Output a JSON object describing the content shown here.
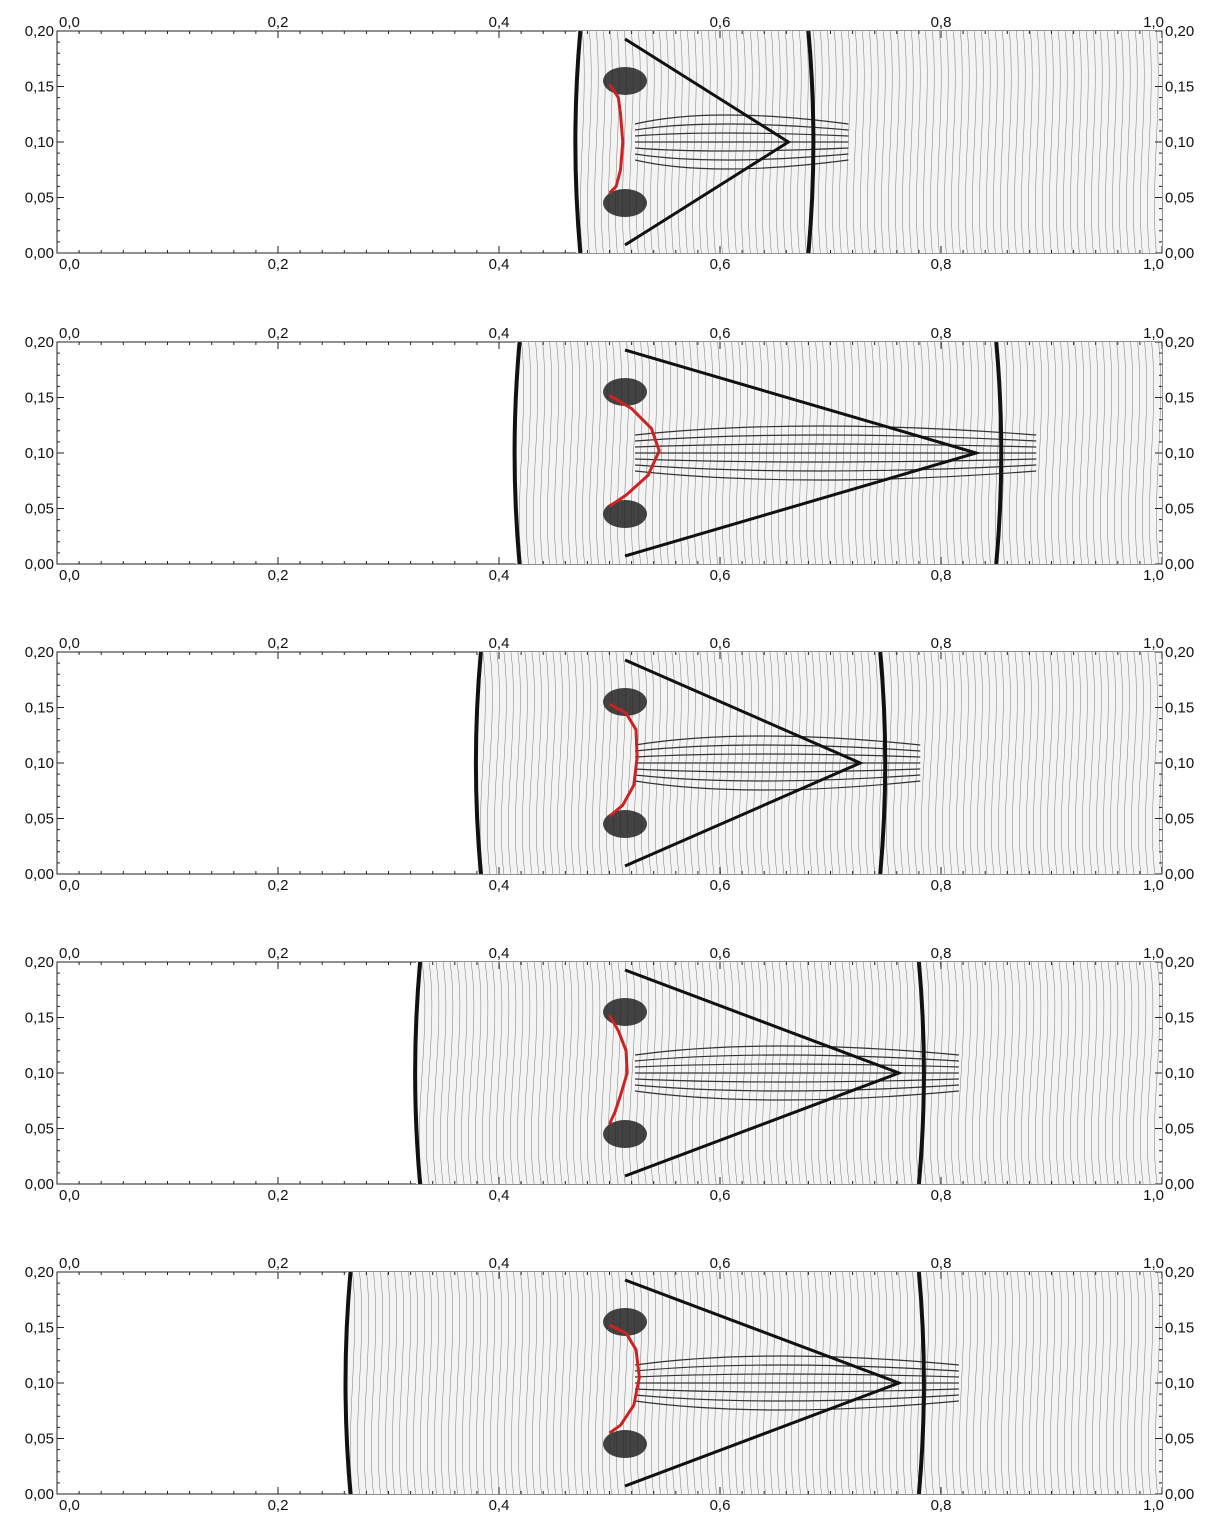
{
  "chart_data": [
    {
      "type": "contour",
      "title": "",
      "xlabel": "",
      "ylabel": "",
      "xlim": [
        0,
        1
      ],
      "ylim": [
        0,
        0.2
      ],
      "x_ticks": [
        0,
        0.2,
        0.4,
        0.6,
        0.8,
        1.0
      ],
      "x_tick_labels": [
        "0,0",
        "0,2",
        "0,4",
        "0,6",
        "0,8",
        "1,0"
      ],
      "y_ticks": [
        0,
        0.05,
        0.1,
        0.15,
        0.2
      ],
      "y_tick_labels": [
        "0,00",
        "0,05",
        "0,10",
        "0,15",
        "0,20"
      ],
      "grid": false,
      "interface_color": "#cc2222",
      "interface_points": [
        [
          0.5,
          0.152
        ],
        [
          0.508,
          0.14
        ],
        [
          0.51,
          0.125
        ],
        [
          0.512,
          0.1
        ],
        [
          0.51,
          0.075
        ],
        [
          0.506,
          0.06
        ],
        [
          0.5,
          0.054
        ]
      ],
      "left_front_x": 0.47,
      "right_front_x": 0.68
    },
    {
      "type": "contour",
      "title": "",
      "xlabel": "",
      "ylabel": "",
      "xlim": [
        0,
        1
      ],
      "ylim": [
        0,
        0.2
      ],
      "x_ticks": [
        0,
        0.2,
        0.4,
        0.6,
        0.8,
        1.0
      ],
      "x_tick_labels": [
        "0,0",
        "0,2",
        "0,4",
        "0,6",
        "0,8",
        "1,0"
      ],
      "y_ticks": [
        0,
        0.05,
        0.1,
        0.15,
        0.2
      ],
      "y_tick_labels": [
        "0,00",
        "0,05",
        "0,10",
        "0,15",
        "0,20"
      ],
      "grid": false,
      "interface_color": "#cc2222",
      "interface_points": [
        [
          0.5,
          0.152
        ],
        [
          0.52,
          0.14
        ],
        [
          0.538,
          0.122
        ],
        [
          0.545,
          0.102
        ],
        [
          0.535,
          0.08
        ],
        [
          0.515,
          0.062
        ],
        [
          0.5,
          0.052
        ]
      ],
      "left_front_x": 0.415,
      "right_front_x": 0.85
    },
    {
      "type": "contour",
      "title": "",
      "xlabel": "",
      "ylabel": "",
      "xlim": [
        0,
        1
      ],
      "ylim": [
        0,
        0.2
      ],
      "x_ticks": [
        0,
        0.2,
        0.4,
        0.6,
        0.8,
        1.0
      ],
      "x_tick_labels": [
        "0,0",
        "0,2",
        "0,4",
        "0,6",
        "0,8",
        "1,0"
      ],
      "y_ticks": [
        0,
        0.05,
        0.1,
        0.15,
        0.2
      ],
      "y_tick_labels": [
        "0,00",
        "0,05",
        "0,10",
        "0,15",
        "0,20"
      ],
      "grid": false,
      "interface_color": "#cc2222",
      "interface_points": [
        [
          0.5,
          0.153
        ],
        [
          0.515,
          0.145
        ],
        [
          0.524,
          0.13
        ],
        [
          0.525,
          0.105
        ],
        [
          0.522,
          0.08
        ],
        [
          0.512,
          0.062
        ],
        [
          0.5,
          0.052
        ]
      ],
      "left_front_x": 0.38,
      "right_front_x": 0.745
    },
    {
      "type": "contour",
      "title": "",
      "xlabel": "",
      "ylabel": "",
      "xlim": [
        0,
        1
      ],
      "ylim": [
        0,
        0.2
      ],
      "x_ticks": [
        0,
        0.2,
        0.4,
        0.6,
        0.8,
        1.0
      ],
      "x_tick_labels": [
        "0,0",
        "0,2",
        "0,4",
        "0,6",
        "0,8",
        "1,0"
      ],
      "y_ticks": [
        0,
        0.05,
        0.1,
        0.15,
        0.2
      ],
      "y_tick_labels": [
        "0,00",
        "0,05",
        "0,10",
        "0,15",
        "0,20"
      ],
      "grid": false,
      "interface_color": "#cc2222",
      "interface_points": [
        [
          0.5,
          0.152
        ],
        [
          0.508,
          0.138
        ],
        [
          0.515,
          0.12
        ],
        [
          0.516,
          0.1
        ],
        [
          0.51,
          0.08
        ],
        [
          0.505,
          0.065
        ],
        [
          0.5,
          0.054
        ]
      ],
      "left_front_x": 0.325,
      "right_front_x": 0.78
    },
    {
      "type": "contour",
      "title": "",
      "xlabel": "",
      "ylabel": "",
      "xlim": [
        0,
        1
      ],
      "ylim": [
        0,
        0.2
      ],
      "x_ticks": [
        0,
        0.2,
        0.4,
        0.6,
        0.8,
        1.0
      ],
      "x_tick_labels": [
        "0,0",
        "0,2",
        "0,4",
        "0,6",
        "0,8",
        "1,0"
      ],
      "y_ticks": [
        0,
        0.05,
        0.1,
        0.15,
        0.2
      ],
      "y_tick_labels": [
        "0,00",
        "0,05",
        "0,10",
        "0,15",
        "0,20"
      ],
      "grid": false,
      "interface_color": "#cc2222",
      "interface_points": [
        [
          0.5,
          0.152
        ],
        [
          0.515,
          0.145
        ],
        [
          0.524,
          0.13
        ],
        [
          0.527,
          0.105
        ],
        [
          0.522,
          0.08
        ],
        [
          0.51,
          0.062
        ],
        [
          0.5,
          0.055
        ]
      ],
      "left_front_x": 0.262,
      "right_front_x": 0.78
    }
  ]
}
